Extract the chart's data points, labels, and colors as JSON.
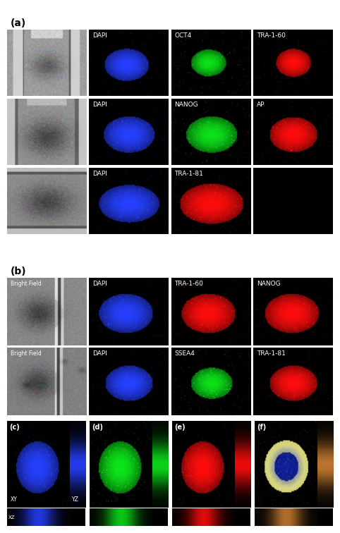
{
  "section_a_label": "(a)",
  "section_b_label": "(b)",
  "fig_bg": "#ffffff",
  "panels_a": [
    [
      {
        "type": "brightfield_a",
        "label": null
      },
      {
        "type": "dapi",
        "label": "DAPI",
        "color": [
          0.15,
          0.25,
          1.0
        ]
      },
      {
        "type": "green",
        "label": "OCT4",
        "color": [
          0.05,
          0.9,
          0.1
        ]
      },
      {
        "type": "red",
        "label": "TRA-1-60",
        "color": [
          1.0,
          0.05,
          0.05
        ]
      }
    ],
    [
      {
        "type": "brightfield_a2",
        "label": null
      },
      {
        "type": "dapi",
        "label": "DAPI",
        "color": [
          0.15,
          0.25,
          1.0
        ]
      },
      {
        "type": "green_big",
        "label": "NANOG",
        "color": [
          0.05,
          0.9,
          0.1
        ]
      },
      {
        "type": "red_big",
        "label": "AP",
        "color": [
          1.0,
          0.05,
          0.05
        ]
      }
    ],
    [
      {
        "type": "brightfield_a3",
        "label": null
      },
      {
        "type": "dapi_big",
        "label": "DAPI",
        "color": [
          0.15,
          0.25,
          1.0
        ]
      },
      {
        "type": "red_wide",
        "label": "TRA-1-81",
        "color": [
          1.0,
          0.05,
          0.05
        ]
      },
      {
        "type": "black",
        "label": null
      }
    ]
  ],
  "panels_b": [
    [
      {
        "type": "brightfield_b",
        "label": "Bright Field"
      },
      {
        "type": "dapi_b",
        "label": "DAPI",
        "color": [
          0.15,
          0.25,
          1.0
        ]
      },
      {
        "type": "red_b",
        "label": "TRA-1-60",
        "color": [
          1.0,
          0.05,
          0.05
        ]
      },
      {
        "type": "red_b2",
        "label": "NANOG",
        "color": [
          1.0,
          0.05,
          0.05
        ]
      }
    ],
    [
      {
        "type": "brightfield_b2",
        "label": "Bright Field"
      },
      {
        "type": "dapi_b2",
        "label": "DAPI",
        "color": [
          0.15,
          0.25,
          1.0
        ]
      },
      {
        "type": "green_b",
        "label": "SSEA4",
        "color": [
          0.05,
          0.9,
          0.1
        ]
      },
      {
        "type": "red_b3",
        "label": "TRA-1-81",
        "color": [
          1.0,
          0.05,
          0.05
        ]
      }
    ]
  ],
  "bottom_labels": [
    "(c)",
    "(d)",
    "(e)",
    "(f)"
  ],
  "bottom_colors": [
    [
      0.15,
      0.25,
      1.0
    ],
    [
      0.05,
      0.9,
      0.1
    ],
    [
      1.0,
      0.05,
      0.05
    ],
    null
  ]
}
